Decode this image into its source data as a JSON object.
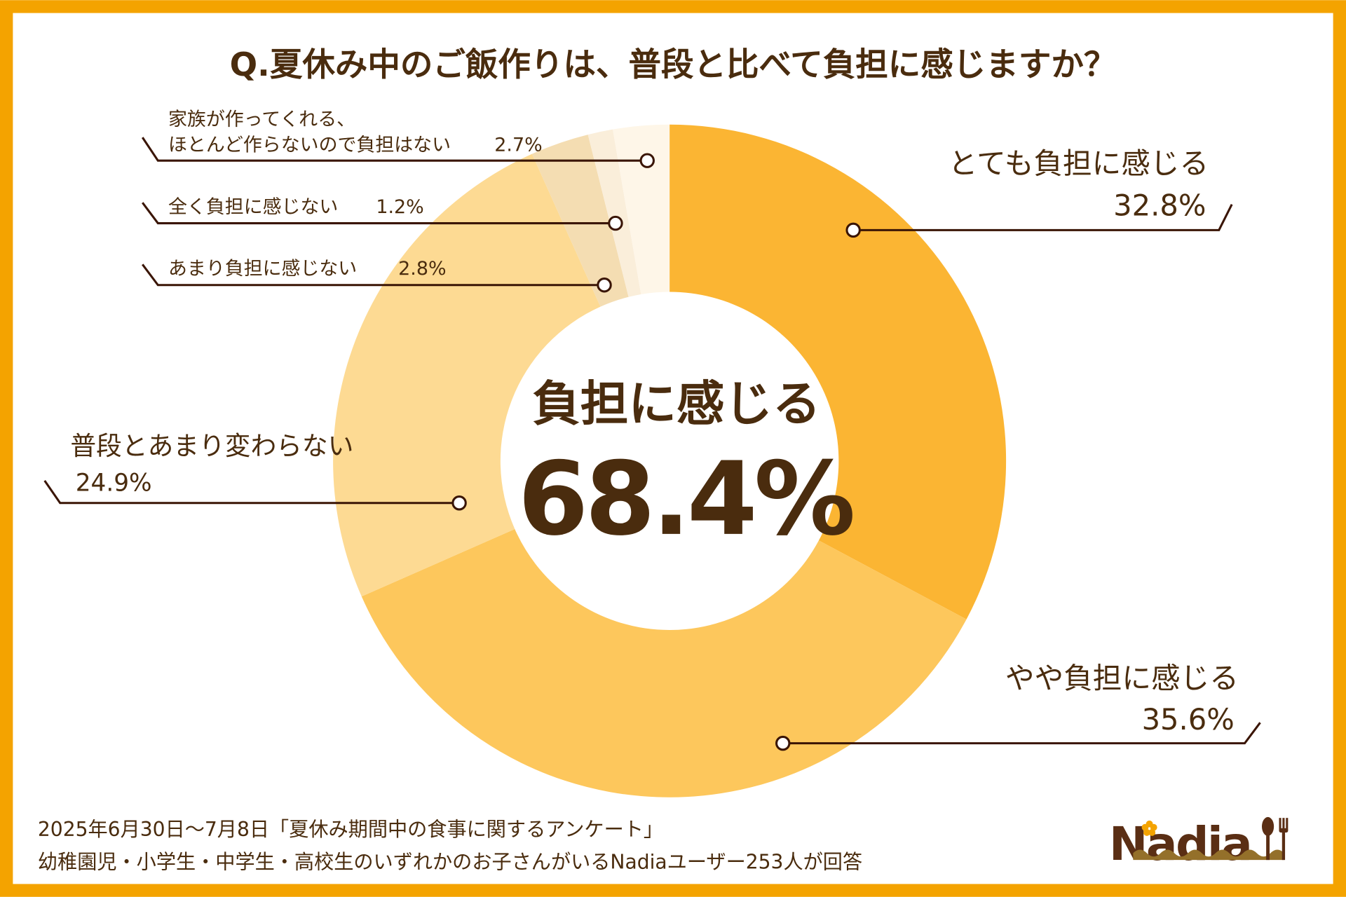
{
  "chart_data": {
    "type": "pie",
    "variant": "donut",
    "title": "Q.夏休み中のご飯作りは、普段と比べて負担に感じますか？",
    "center_label": "負担に感じる",
    "center_value": "68.4%",
    "slices": [
      {
        "label": "とても負担に感じる",
        "value": 32.8,
        "display": "32.8%",
        "color": "#FBB533"
      },
      {
        "label": "やや負担に感じる",
        "value": 35.6,
        "display": "35.6%",
        "color": "#FDC75C"
      },
      {
        "label": "普段とあまり変わらない",
        "value": 24.9,
        "display": "24.9%",
        "color": "#FDDA93"
      },
      {
        "label": "あまり負担に感じない",
        "value": 2.8,
        "display": "2.8%",
        "color": "#F4DDB2"
      },
      {
        "label": "全く負担に感じない",
        "value": 1.2,
        "display": "1.2%",
        "color": "#FAEEDA"
      },
      {
        "label_line1": "家族が作ってくれる、",
        "label_line2": "ほとんど作らないので負担はない",
        "value": 2.7,
        "display": "2.7%",
        "color": "#FEF6E8"
      }
    ]
  },
  "footer": {
    "line1": "2025年6月30日～7月8日「夏休み期間中の食事に関するアンケート」",
    "line2": "幼稚園児・小学生・中学生・高校生のいずれかのお子さんがいるNadiaユーザー253人が回答"
  },
  "logo": {
    "text": "Nadia"
  },
  "colors": {
    "border": "#F4A300",
    "text": "#4A2C0E",
    "leader": "#3A1505"
  }
}
